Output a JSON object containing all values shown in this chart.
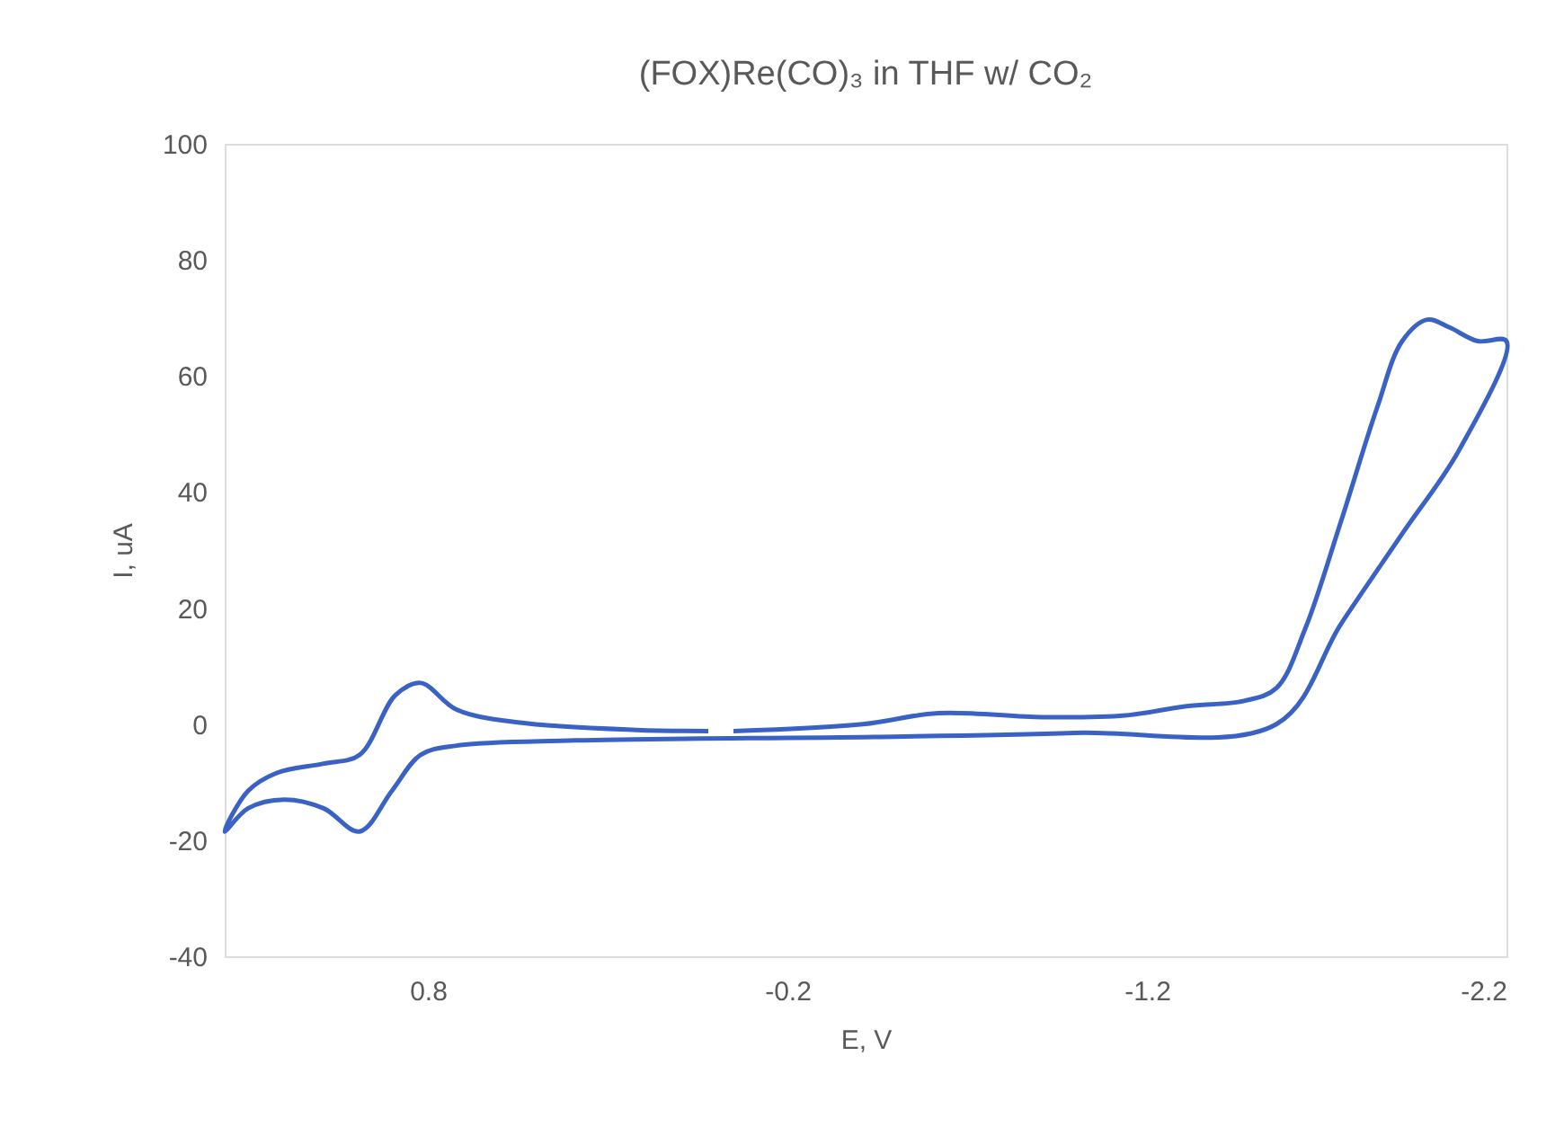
{
  "chart_data": {
    "type": "line",
    "title": "(FOX)Re(CO)₃ in THF w/ CO₂",
    "xlabel": "E, V",
    "ylabel": "I, uA",
    "xlim": [
      1.365,
      -2.2
    ],
    "xticks": [
      0.8,
      -0.2,
      -1.2,
      -2.2
    ],
    "ylim": [
      -40,
      100
    ],
    "yticks": [
      -40,
      -20,
      0,
      20,
      40,
      60,
      80,
      100
    ],
    "grid": false,
    "marker": "none",
    "line_style": "solid",
    "series": [
      {
        "color": "#3a62c4",
        "x": [
          0.02,
          0.22,
          0.55,
          0.72,
          0.82,
          0.89,
          0.99,
          1.09,
          1.22,
          1.3,
          1.365,
          1.3,
          1.2,
          1.09,
          0.99,
          0.9,
          0.82,
          0.72,
          0.39,
          -0.44,
          -1.0,
          -1.56,
          -1.74,
          -1.91,
          -2.07,
          -2.2,
          -2.12,
          -2.04,
          -1.98,
          -1.91,
          -1.84,
          -1.74,
          -1.64,
          -1.56,
          -1.47,
          -1.31,
          -1.14,
          -0.91,
          -0.62,
          -0.41,
          -0.05
        ],
        "values": [
          -1.2,
          -1.0,
          0.3,
          2.5,
          7.1,
          5,
          -5.3,
          -6.8,
          -8.4,
          -11.5,
          -18.5,
          -14.5,
          -13,
          -14.5,
          -18.5,
          -11.5,
          -5.3,
          -3.7,
          -2.8,
          -2.2,
          -1.5,
          0,
          17.3,
          32.8,
          47.4,
          66,
          66,
          68.4,
          69.7,
          66,
          54.5,
          35,
          16.4,
          6.2,
          4,
          3.1,
          1.5,
          1.2,
          1.9,
          0,
          -1.2
        ]
      }
    ]
  }
}
